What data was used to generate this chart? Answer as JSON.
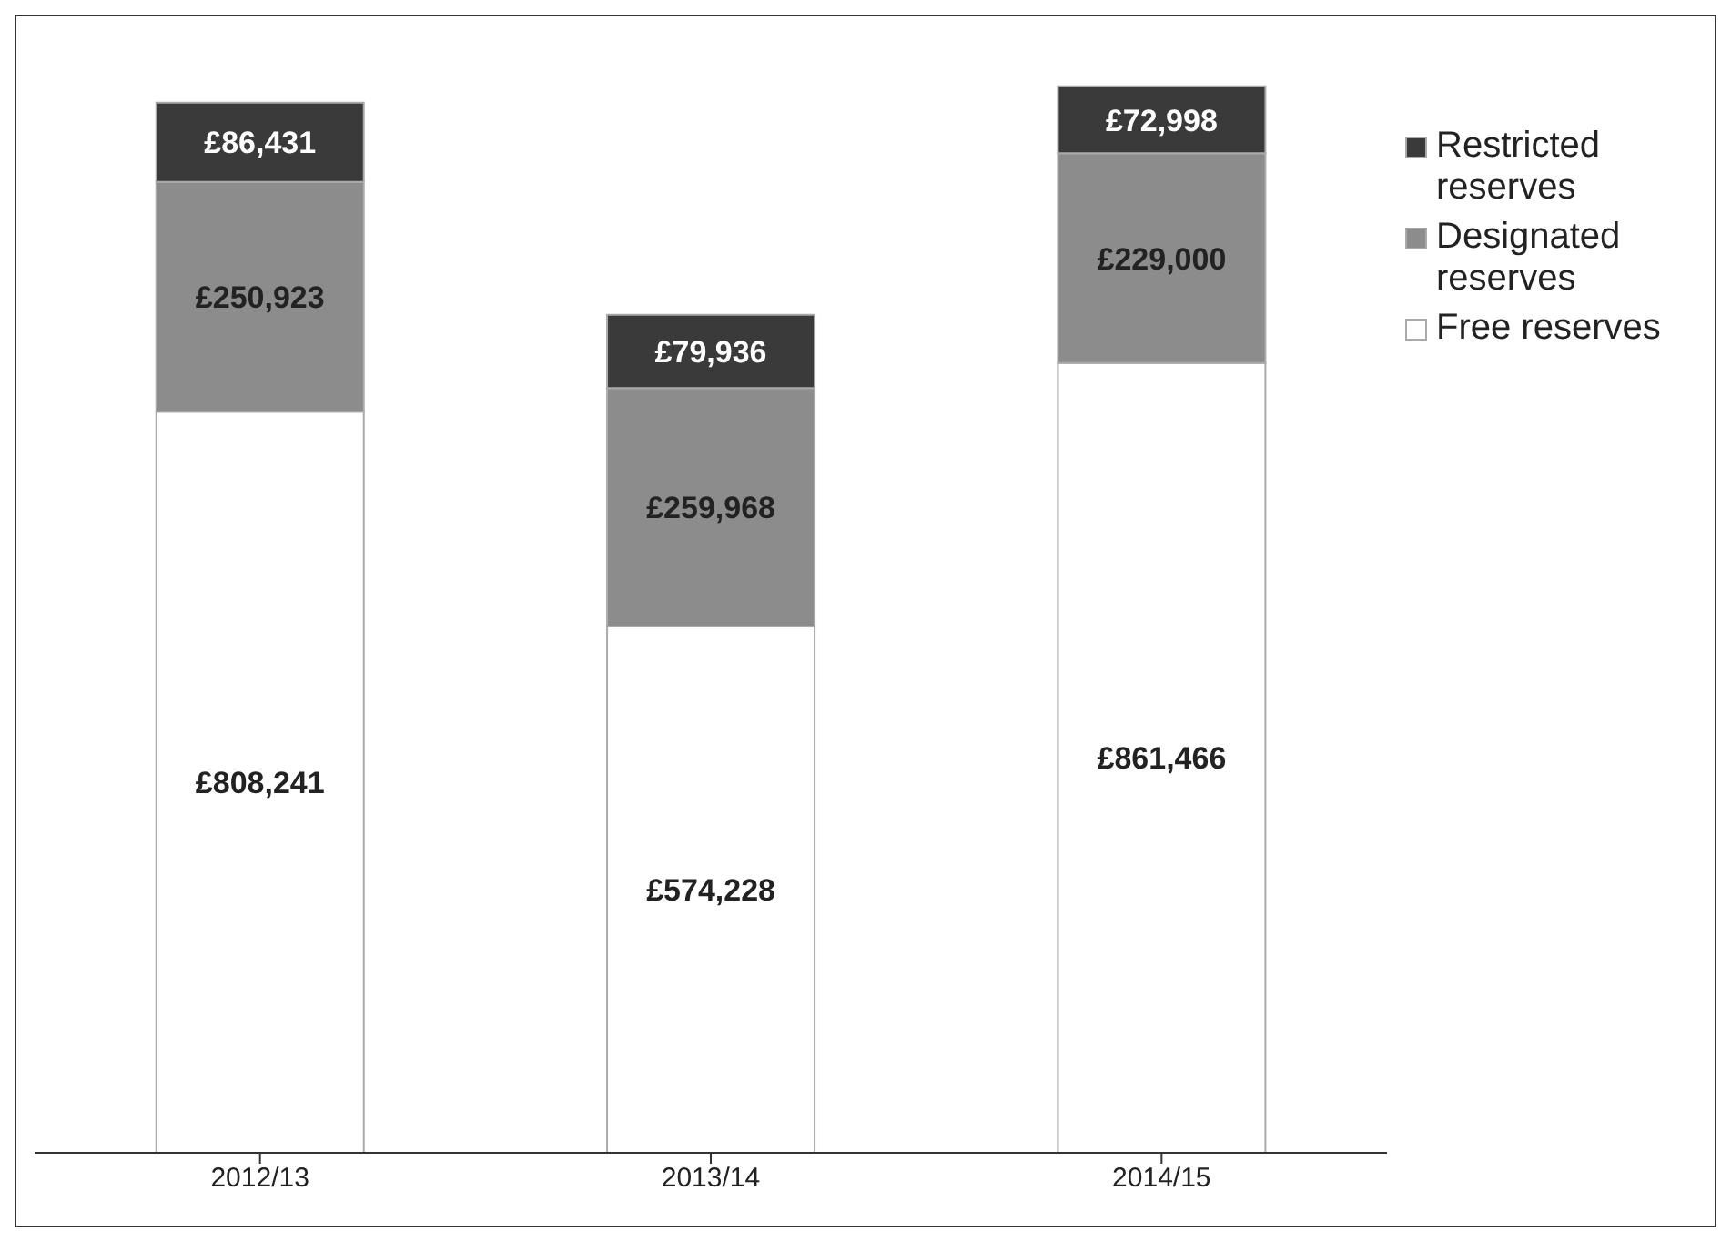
{
  "chart_data": {
    "type": "bar",
    "stacked": true,
    "categories": [
      "2012/13",
      "2013/14",
      "2014/15"
    ],
    "series": [
      {
        "name": "Free reserves",
        "color": "#ffffff",
        "values": [
          808241,
          574228,
          861466
        ],
        "value_labels": [
          "£808,241",
          "£574,228",
          "£861,466"
        ]
      },
      {
        "name": "Designated reserves",
        "color": "#8c8c8c",
        "values": [
          250923,
          259968,
          229000
        ],
        "value_labels": [
          "£250,923",
          "£259,968",
          "£229,000"
        ]
      },
      {
        "name": "Restricted reserves",
        "color": "#3a3a3a",
        "values": [
          86431,
          79936,
          72998
        ],
        "value_labels": [
          "£86,431",
          "£79,936",
          "£72,998"
        ]
      }
    ],
    "tick_labels": "x",
    "legend": "top right",
    "grid": false
  }
}
